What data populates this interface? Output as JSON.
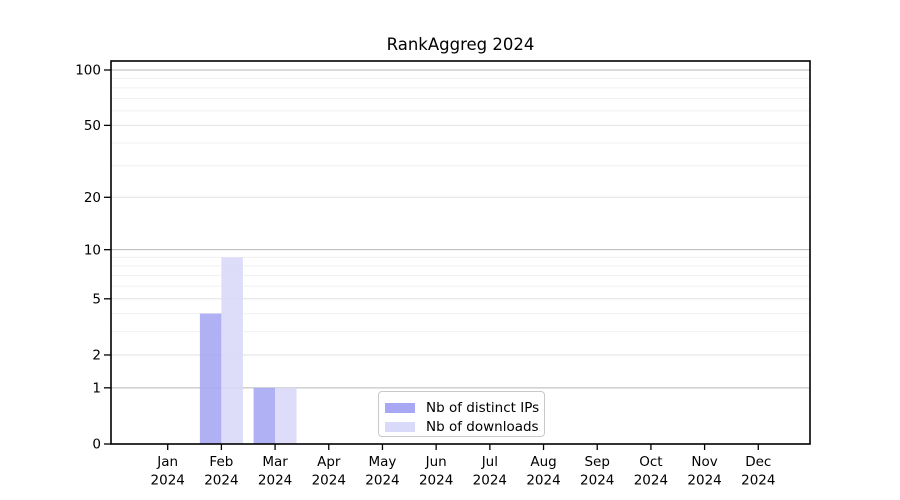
{
  "chart_data": {
    "type": "bar",
    "title": "RankAggreg 2024",
    "categories": [
      "Jan",
      "Feb",
      "Mar",
      "Apr",
      "May",
      "Jun",
      "Jul",
      "Aug",
      "Sep",
      "Oct",
      "Nov",
      "Dec"
    ],
    "x_tick_second_line": "2024",
    "series": [
      {
        "name": "Nb of distinct IPs",
        "color": "#a7a7f3",
        "values": [
          0,
          4,
          1,
          0,
          0,
          0,
          0,
          0,
          0,
          0,
          0,
          0
        ]
      },
      {
        "name": "Nb of downloads",
        "color": "#d9d9fa",
        "values": [
          0,
          9,
          1,
          0,
          0,
          0,
          0,
          0,
          0,
          0,
          0,
          0
        ]
      }
    ],
    "y_axis": {
      "scale": "log10(1+v)",
      "major_ticks": [
        0,
        1,
        2,
        5,
        10,
        20,
        50,
        100
      ],
      "minor_ticks": [
        3,
        4,
        6,
        7,
        8,
        9,
        30,
        40,
        60,
        70,
        80,
        90
      ],
      "range": [
        0,
        100
      ]
    },
    "legend": {
      "position": "lower center"
    },
    "grid": true,
    "palette": {
      "grid_minor": "#f0f0f0",
      "grid_major": "#e2e2e2",
      "grid_major_pow10": "#b6b6b6",
      "axis": "#000000",
      "text": "#000000"
    }
  }
}
